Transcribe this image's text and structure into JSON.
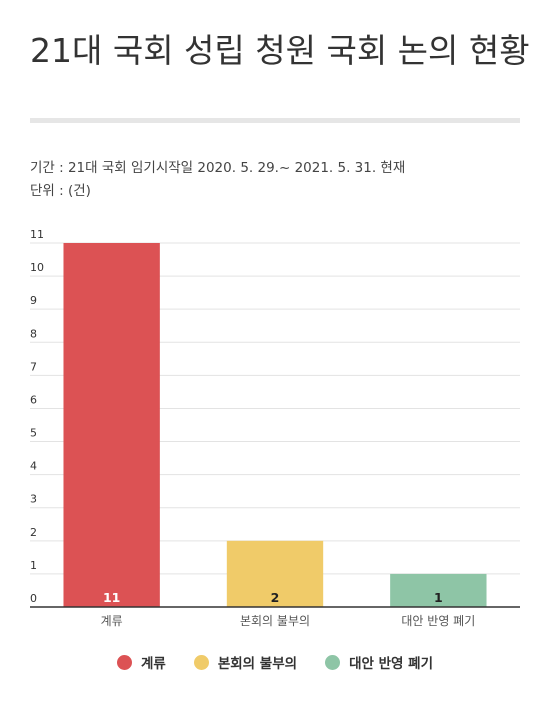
{
  "header": {
    "title": "21대 국회 성립 청원 국회 논의 현황",
    "period": "기간 : 21대 국회 임기시작일 2020. 5. 29.~ 2021. 5. 31. 현재",
    "unit": "단위 : (건)"
  },
  "chart_data": {
    "type": "bar",
    "categories": [
      "계류",
      "본회의 불부의",
      "대안 반영 폐기"
    ],
    "values": [
      11,
      2,
      1
    ],
    "colors": [
      "#dc5254",
      "#f0cb69",
      "#8ec5a6"
    ],
    "data_labels": [
      "11",
      "2",
      "1"
    ],
    "ylim": [
      0,
      11
    ],
    "yticks": [
      "0",
      "1",
      "2",
      "3",
      "4",
      "5",
      "6",
      "7",
      "8",
      "9",
      "10",
      "11"
    ],
    "grid": true,
    "legend": {
      "placement": "bottom",
      "entries": [
        "계류",
        "본회의 불부의",
        "대안 반영 폐기"
      ]
    }
  }
}
